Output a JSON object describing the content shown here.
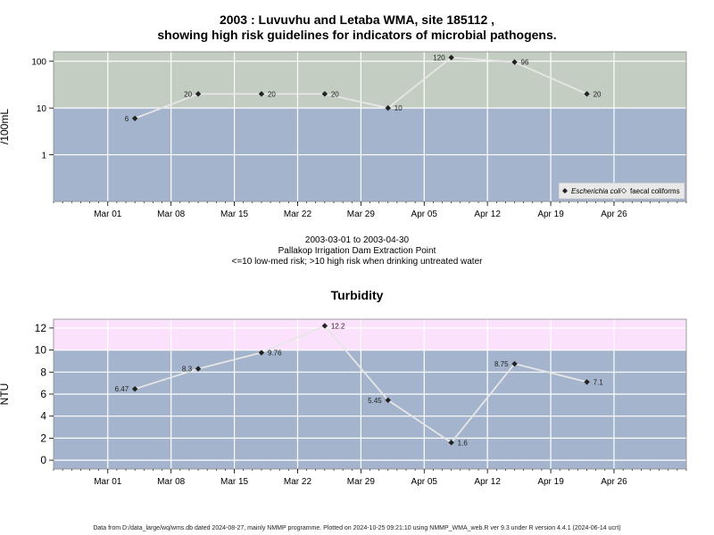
{
  "header": {
    "title_line1": "2003 : Luvuvhu and Letaba WMA, site 185112 ,",
    "title_line2": "showing high risk guidelines for indicators of microbial pathogens."
  },
  "caption": {
    "date_range": "2003-03-01 to 2003-04-30",
    "site_name": "Pallakop Irrigation Dam Extraction Point",
    "note": "<=10 low-med risk; >10 high risk when drinking untreated water"
  },
  "turbidity_title": "Turbidity",
  "footer": "Data from D:/data_large/wq/wms.db dated 2024-08-27, mainly NMMP programme. Plotted on 2024-10-25 09:21:10 using NMMP_WMA_web.R ver 9.3 under R version 4.4.1 (2024-06-14 ucrt)",
  "colors": {
    "low_band": "#a3b4cc",
    "high_band_microbial": "#c3cdc1",
    "high_band_turbidity": "#fbe1fb",
    "line": "#e6e6e6",
    "marker": "#222222"
  },
  "chart_data": [
    {
      "type": "line",
      "title": "",
      "ylabel": "/100mL",
      "y_scale": "log",
      "ylim": [
        0.1,
        160
      ],
      "y_ticks": [
        1,
        10,
        100
      ],
      "y_tick_labels": [
        "1",
        "10",
        "100"
      ],
      "threshold": 10,
      "xlim": [
        "2003-02-23",
        "2003-05-04"
      ],
      "x_ticks": [
        "2003-03-01",
        "2003-03-08",
        "2003-03-15",
        "2003-03-22",
        "2003-03-29",
        "2003-04-05",
        "2003-04-12",
        "2003-04-19",
        "2003-04-26"
      ],
      "x_tick_labels": [
        "Mar 01",
        "Mar 08",
        "Mar 15",
        "Mar 22",
        "Mar 29",
        "Apr 05",
        "Apr 12",
        "Apr 19",
        "Apr 26"
      ],
      "grid": true,
      "legend_position": "bottom-right",
      "legend": [
        {
          "label": "Escherichia coli",
          "italic": true,
          "marker": "filled-diamond"
        },
        {
          "label": "faecal coliforms",
          "italic": false,
          "marker": "open-diamond"
        }
      ],
      "series": [
        {
          "name": "Escherichia coli",
          "x": [
            "2003-03-04",
            "2003-03-11",
            "2003-03-18",
            "2003-03-25",
            "2003-04-01",
            "2003-04-08",
            "2003-04-15",
            "2003-04-23"
          ],
          "values": [
            6,
            20,
            20,
            20,
            10,
            120,
            96,
            20
          ],
          "labels": [
            "6",
            "20",
            "20",
            "20",
            "10",
            "120",
            "96",
            "20"
          ],
          "label_side": [
            "left",
            "left",
            "right",
            "right",
            "right",
            "left",
            "right",
            "right"
          ]
        }
      ]
    },
    {
      "type": "line",
      "title": "Turbidity",
      "ylabel": "NTU",
      "y_scale": "linear",
      "ylim": [
        -0.8,
        12.8
      ],
      "y_ticks": [
        0,
        2,
        4,
        6,
        8,
        10,
        12
      ],
      "y_tick_labels": [
        "0",
        "2",
        "4",
        "6",
        "8",
        "10",
        "12"
      ],
      "threshold": 10,
      "xlim": [
        "2003-02-23",
        "2003-05-04"
      ],
      "x_ticks": [
        "2003-03-01",
        "2003-03-08",
        "2003-03-15",
        "2003-03-22",
        "2003-03-29",
        "2003-04-05",
        "2003-04-12",
        "2003-04-19",
        "2003-04-26"
      ],
      "x_tick_labels": [
        "Mar 01",
        "Mar 08",
        "Mar 15",
        "Mar 22",
        "Mar 29",
        "Apr 05",
        "Apr 12",
        "Apr 19",
        "Apr 26"
      ],
      "grid": true,
      "series": [
        {
          "x": [
            "2003-03-04",
            "2003-03-11",
            "2003-03-18",
            "2003-03-25",
            "2003-04-01",
            "2003-04-08",
            "2003-04-15",
            "2003-04-23"
          ],
          "values": [
            6.47,
            8.3,
            9.76,
            12.2,
            5.45,
            1.6,
            8.75,
            7.1
          ],
          "labels": [
            "6.47",
            "8.3",
            "9.76",
            "12.2",
            "5.45",
            "1.6",
            "8.75",
            "7.1"
          ],
          "label_side": [
            "left",
            "left",
            "right",
            "right",
            "left",
            "right",
            "left",
            "right"
          ]
        }
      ]
    }
  ]
}
